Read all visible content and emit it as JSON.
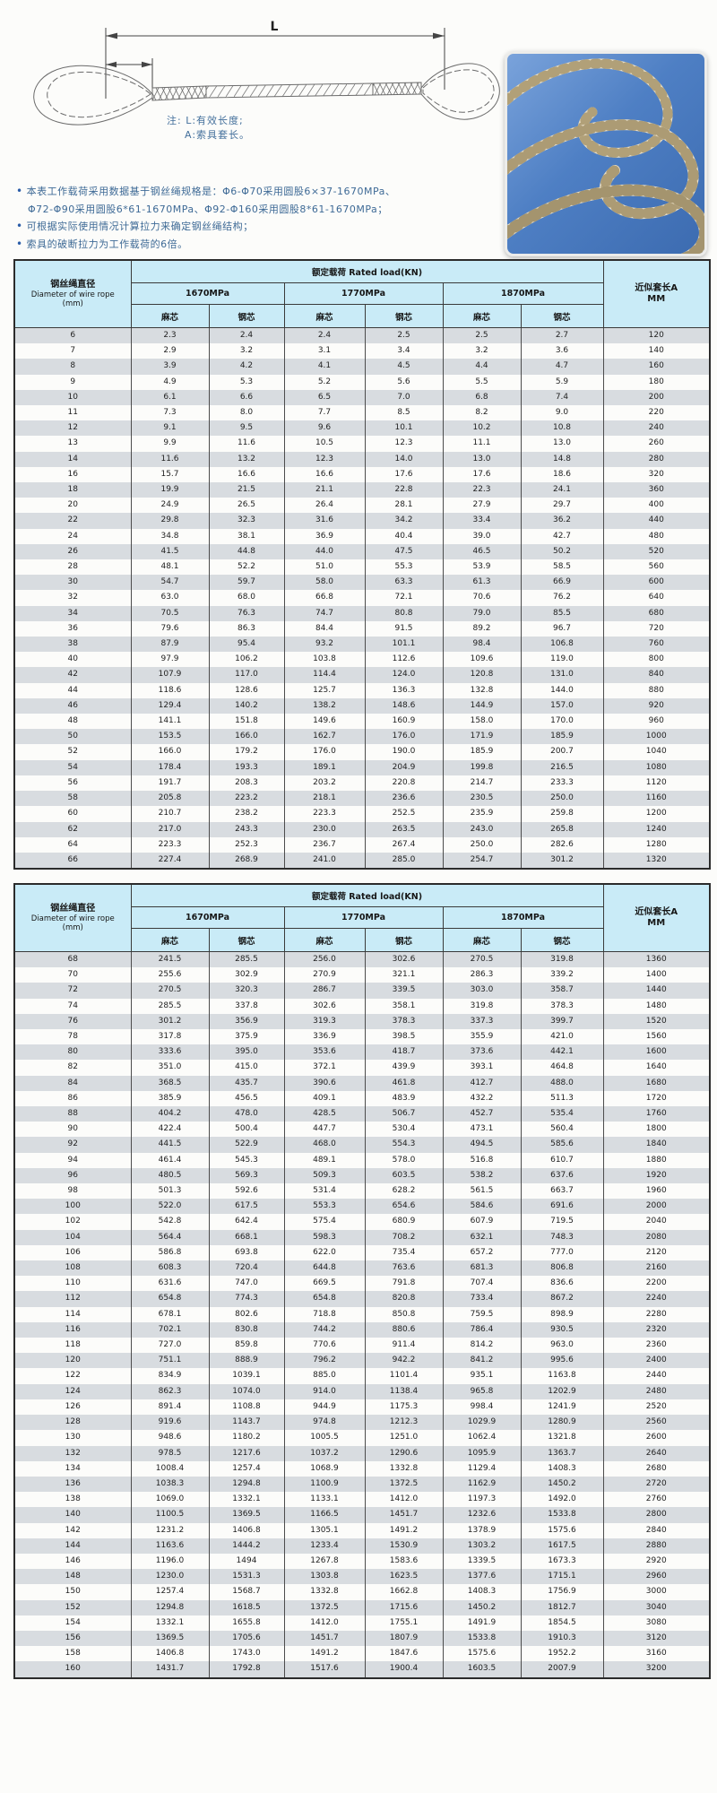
{
  "diagram": {
    "length_label": "L",
    "note_line1": "注: L:有效长度;",
    "note_line2": "A:索具套长。"
  },
  "notes": {
    "line1": "本表工作载荷采用数据基于钢丝绳规格是：Φ6-Φ70采用圆股6×37-1670MPa、",
    "line2": "Φ72-Φ90采用圆股6*61-1670MPa、Φ92-Φ160采用圆股8*61-1670MPa；",
    "line3": "可根据实际使用情况计算拉力来确定钢丝绳结构；",
    "line4": "索具的破断拉力为工作载荷的6倍。"
  },
  "table_header": {
    "diameter_zh": "钢丝绳直径",
    "diameter_en": "Diameter of wire rope",
    "diameter_unit": "(mm)",
    "rated_load": "额定载荷  Rated load(KN)",
    "grade_1": "1670MPa",
    "grade_2": "1770MPa",
    "grade_3": "1870MPa",
    "core_fiber": "麻芯",
    "core_steel": "钢芯",
    "sleeve_line1": "近似套长A",
    "sleeve_line2": "MM"
  },
  "table1_rows": [
    [
      "6",
      "2.3",
      "2.4",
      "2.4",
      "2.5",
      "2.5",
      "2.7",
      "120"
    ],
    [
      "7",
      "2.9",
      "3.2",
      "3.1",
      "3.4",
      "3.2",
      "3.6",
      "140"
    ],
    [
      "8",
      "3.9",
      "4.2",
      "4.1",
      "4.5",
      "4.4",
      "4.7",
      "160"
    ],
    [
      "9",
      "4.9",
      "5.3",
      "5.2",
      "5.6",
      "5.5",
      "5.9",
      "180"
    ],
    [
      "10",
      "6.1",
      "6.6",
      "6.5",
      "7.0",
      "6.8",
      "7.4",
      "200"
    ],
    [
      "11",
      "7.3",
      "8.0",
      "7.7",
      "8.5",
      "8.2",
      "9.0",
      "220"
    ],
    [
      "12",
      "9.1",
      "9.5",
      "9.6",
      "10.1",
      "10.2",
      "10.8",
      "240"
    ],
    [
      "13",
      "9.9",
      "11.6",
      "10.5",
      "12.3",
      "11.1",
      "13.0",
      "260"
    ],
    [
      "14",
      "11.6",
      "13.2",
      "12.3",
      "14.0",
      "13.0",
      "14.8",
      "280"
    ],
    [
      "16",
      "15.7",
      "16.6",
      "16.6",
      "17.6",
      "17.6",
      "18.6",
      "320"
    ],
    [
      "18",
      "19.9",
      "21.5",
      "21.1",
      "22.8",
      "22.3",
      "24.1",
      "360"
    ],
    [
      "20",
      "24.9",
      "26.5",
      "26.4",
      "28.1",
      "27.9",
      "29.7",
      "400"
    ],
    [
      "22",
      "29.8",
      "32.3",
      "31.6",
      "34.2",
      "33.4",
      "36.2",
      "440"
    ],
    [
      "24",
      "34.8",
      "38.1",
      "36.9",
      "40.4",
      "39.0",
      "42.7",
      "480"
    ],
    [
      "26",
      "41.5",
      "44.8",
      "44.0",
      "47.5",
      "46.5",
      "50.2",
      "520"
    ],
    [
      "28",
      "48.1",
      "52.2",
      "51.0",
      "55.3",
      "53.9",
      "58.5",
      "560"
    ],
    [
      "30",
      "54.7",
      "59.7",
      "58.0",
      "63.3",
      "61.3",
      "66.9",
      "600"
    ],
    [
      "32",
      "63.0",
      "68.0",
      "66.8",
      "72.1",
      "70.6",
      "76.2",
      "640"
    ],
    [
      "34",
      "70.5",
      "76.3",
      "74.7",
      "80.8",
      "79.0",
      "85.5",
      "680"
    ],
    [
      "36",
      "79.6",
      "86.3",
      "84.4",
      "91.5",
      "89.2",
      "96.7",
      "720"
    ],
    [
      "38",
      "87.9",
      "95.4",
      "93.2",
      "101.1",
      "98.4",
      "106.8",
      "760"
    ],
    [
      "40",
      "97.9",
      "106.2",
      "103.8",
      "112.6",
      "109.6",
      "119.0",
      "800"
    ],
    [
      "42",
      "107.9",
      "117.0",
      "114.4",
      "124.0",
      "120.8",
      "131.0",
      "840"
    ],
    [
      "44",
      "118.6",
      "128.6",
      "125.7",
      "136.3",
      "132.8",
      "144.0",
      "880"
    ],
    [
      "46",
      "129.4",
      "140.2",
      "138.2",
      "148.6",
      "144.9",
      "157.0",
      "920"
    ],
    [
      "48",
      "141.1",
      "151.8",
      "149.6",
      "160.9",
      "158.0",
      "170.0",
      "960"
    ],
    [
      "50",
      "153.5",
      "166.0",
      "162.7",
      "176.0",
      "171.9",
      "185.9",
      "1000"
    ],
    [
      "52",
      "166.0",
      "179.2",
      "176.0",
      "190.0",
      "185.9",
      "200.7",
      "1040"
    ],
    [
      "54",
      "178.4",
      "193.3",
      "189.1",
      "204.9",
      "199.8",
      "216.5",
      "1080"
    ],
    [
      "56",
      "191.7",
      "208.3",
      "203.2",
      "220.8",
      "214.7",
      "233.3",
      "1120"
    ],
    [
      "58",
      "205.8",
      "223.2",
      "218.1",
      "236.6",
      "230.5",
      "250.0",
      "1160"
    ],
    [
      "60",
      "210.7",
      "238.2",
      "223.3",
      "252.5",
      "235.9",
      "259.8",
      "1200"
    ],
    [
      "62",
      "217.0",
      "243.3",
      "230.0",
      "263.5",
      "243.0",
      "265.8",
      "1240"
    ],
    [
      "64",
      "223.3",
      "252.3",
      "236.7",
      "267.4",
      "250.0",
      "282.6",
      "1280"
    ],
    [
      "66",
      "227.4",
      "268.9",
      "241.0",
      "285.0",
      "254.7",
      "301.2",
      "1320"
    ]
  ],
  "table2_rows": [
    [
      "68",
      "241.5",
      "285.5",
      "256.0",
      "302.6",
      "270.5",
      "319.8",
      "1360"
    ],
    [
      "70",
      "255.6",
      "302.9",
      "270.9",
      "321.1",
      "286.3",
      "339.2",
      "1400"
    ],
    [
      "72",
      "270.5",
      "320.3",
      "286.7",
      "339.5",
      "303.0",
      "358.7",
      "1440"
    ],
    [
      "74",
      "285.5",
      "337.8",
      "302.6",
      "358.1",
      "319.8",
      "378.3",
      "1480"
    ],
    [
      "76",
      "301.2",
      "356.9",
      "319.3",
      "378.3",
      "337.3",
      "399.7",
      "1520"
    ],
    [
      "78",
      "317.8",
      "375.9",
      "336.9",
      "398.5",
      "355.9",
      "421.0",
      "1560"
    ],
    [
      "80",
      "333.6",
      "395.0",
      "353.6",
      "418.7",
      "373.6",
      "442.1",
      "1600"
    ],
    [
      "82",
      "351.0",
      "415.0",
      "372.1",
      "439.9",
      "393.1",
      "464.8",
      "1640"
    ],
    [
      "84",
      "368.5",
      "435.7",
      "390.6",
      "461.8",
      "412.7",
      "488.0",
      "1680"
    ],
    [
      "86",
      "385.9",
      "456.5",
      "409.1",
      "483.9",
      "432.2",
      "511.3",
      "1720"
    ],
    [
      "88",
      "404.2",
      "478.0",
      "428.5",
      "506.7",
      "452.7",
      "535.4",
      "1760"
    ],
    [
      "90",
      "422.4",
      "500.4",
      "447.7",
      "530.4",
      "473.1",
      "560.4",
      "1800"
    ],
    [
      "92",
      "441.5",
      "522.9",
      "468.0",
      "554.3",
      "494.5",
      "585.6",
      "1840"
    ],
    [
      "94",
      "461.4",
      "545.3",
      "489.1",
      "578.0",
      "516.8",
      "610.7",
      "1880"
    ],
    [
      "96",
      "480.5",
      "569.3",
      "509.3",
      "603.5",
      "538.2",
      "637.6",
      "1920"
    ],
    [
      "98",
      "501.3",
      "592.6",
      "531.4",
      "628.2",
      "561.5",
      "663.7",
      "1960"
    ],
    [
      "100",
      "522.0",
      "617.5",
      "553.3",
      "654.6",
      "584.6",
      "691.6",
      "2000"
    ],
    [
      "102",
      "542.8",
      "642.4",
      "575.4",
      "680.9",
      "607.9",
      "719.5",
      "2040"
    ],
    [
      "104",
      "564.4",
      "668.1",
      "598.3",
      "708.2",
      "632.1",
      "748.3",
      "2080"
    ],
    [
      "106",
      "586.8",
      "693.8",
      "622.0",
      "735.4",
      "657.2",
      "777.0",
      "2120"
    ],
    [
      "108",
      "608.3",
      "720.4",
      "644.8",
      "763.6",
      "681.3",
      "806.8",
      "2160"
    ],
    [
      "110",
      "631.6",
      "747.0",
      "669.5",
      "791.8",
      "707.4",
      "836.6",
      "2200"
    ],
    [
      "112",
      "654.8",
      "774.3",
      "654.8",
      "820.8",
      "733.4",
      "867.2",
      "2240"
    ],
    [
      "114",
      "678.1",
      "802.6",
      "718.8",
      "850.8",
      "759.5",
      "898.9",
      "2280"
    ],
    [
      "116",
      "702.1",
      "830.8",
      "744.2",
      "880.6",
      "786.4",
      "930.5",
      "2320"
    ],
    [
      "118",
      "727.0",
      "859.8",
      "770.6",
      "911.4",
      "814.2",
      "963.0",
      "2360"
    ],
    [
      "120",
      "751.1",
      "888.9",
      "796.2",
      "942.2",
      "841.2",
      "995.6",
      "2400"
    ],
    [
      "122",
      "834.9",
      "1039.1",
      "885.0",
      "1101.4",
      "935.1",
      "1163.8",
      "2440"
    ],
    [
      "124",
      "862.3",
      "1074.0",
      "914.0",
      "1138.4",
      "965.8",
      "1202.9",
      "2480"
    ],
    [
      "126",
      "891.4",
      "1108.8",
      "944.9",
      "1175.3",
      "998.4",
      "1241.9",
      "2520"
    ],
    [
      "128",
      "919.6",
      "1143.7",
      "974.8",
      "1212.3",
      "1029.9",
      "1280.9",
      "2560"
    ],
    [
      "130",
      "948.6",
      "1180.2",
      "1005.5",
      "1251.0",
      "1062.4",
      "1321.8",
      "2600"
    ],
    [
      "132",
      "978.5",
      "1217.6",
      "1037.2",
      "1290.6",
      "1095.9",
      "1363.7",
      "2640"
    ],
    [
      "134",
      "1008.4",
      "1257.4",
      "1068.9",
      "1332.8",
      "1129.4",
      "1408.3",
      "2680"
    ],
    [
      "136",
      "1038.3",
      "1294.8",
      "1100.9",
      "1372.5",
      "1162.9",
      "1450.2",
      "2720"
    ],
    [
      "138",
      "1069.0",
      "1332.1",
      "1133.1",
      "1412.0",
      "1197.3",
      "1492.0",
      "2760"
    ],
    [
      "140",
      "1100.5",
      "1369.5",
      "1166.5",
      "1451.7",
      "1232.6",
      "1533.8",
      "2800"
    ],
    [
      "142",
      "1231.2",
      "1406.8",
      "1305.1",
      "1491.2",
      "1378.9",
      "1575.6",
      "2840"
    ],
    [
      "144",
      "1163.6",
      "1444.2",
      "1233.4",
      "1530.9",
      "1303.2",
      "1617.5",
      "2880"
    ],
    [
      "146",
      "1196.0",
      "1494",
      "1267.8",
      "1583.6",
      "1339.5",
      "1673.3",
      "2920"
    ],
    [
      "148",
      "1230.0",
      "1531.3",
      "1303.8",
      "1623.5",
      "1377.6",
      "1715.1",
      "2960"
    ],
    [
      "150",
      "1257.4",
      "1568.7",
      "1332.8",
      "1662.8",
      "1408.3",
      "1756.9",
      "3000"
    ],
    [
      "152",
      "1294.8",
      "1618.5",
      "1372.5",
      "1715.6",
      "1450.2",
      "1812.7",
      "3040"
    ],
    [
      "154",
      "1332.1",
      "1655.8",
      "1412.0",
      "1755.1",
      "1491.9",
      "1854.5",
      "3080"
    ],
    [
      "156",
      "1369.5",
      "1705.6",
      "1451.7",
      "1807.9",
      "1533.8",
      "1910.3",
      "3120"
    ],
    [
      "158",
      "1406.8",
      "1743.0",
      "1491.2",
      "1847.6",
      "1575.6",
      "1952.2",
      "3160"
    ],
    [
      "160",
      "1431.7",
      "1792.8",
      "1517.6",
      "1900.4",
      "1603.5",
      "2007.9",
      "3200"
    ]
  ]
}
